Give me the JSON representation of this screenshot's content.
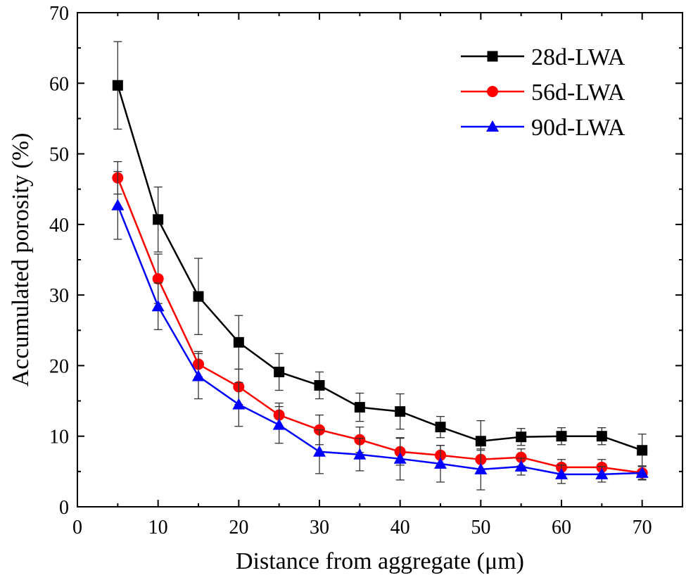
{
  "chart_data": {
    "type": "line",
    "title": "",
    "xlabel": "Distance from aggregate (μm)",
    "ylabel": "Accumulated porosity (%)",
    "xlim": [
      0,
      75
    ],
    "ylim": [
      0,
      70
    ],
    "xticks": [
      0,
      10,
      20,
      30,
      40,
      50,
      60,
      70
    ],
    "yticks": [
      0,
      10,
      20,
      30,
      40,
      50,
      60,
      70
    ],
    "x": [
      5,
      10,
      15,
      20,
      25,
      30,
      35,
      40,
      45,
      50,
      55,
      60,
      65,
      70
    ],
    "legend_position": "top-right",
    "series": [
      {
        "name": "28d-LWA",
        "color": "#000000",
        "marker": "square",
        "values": [
          59.7,
          40.7,
          29.8,
          23.3,
          19.1,
          17.2,
          14.1,
          13.5,
          11.3,
          9.3,
          9.9,
          10.0,
          10.0,
          8.0
        ],
        "errors": [
          6.2,
          4.6,
          5.4,
          3.8,
          2.6,
          1.9,
          2.0,
          2.5,
          1.5,
          2.9,
          1.2,
          1.2,
          1.2,
          2.3
        ]
      },
      {
        "name": "56d-LWA",
        "color": "#ff0000",
        "marker": "circle",
        "values": [
          46.6,
          32.3,
          20.2,
          17.0,
          13.0,
          10.9,
          9.5,
          7.8,
          7.3,
          6.7,
          7.0,
          5.6,
          5.6,
          4.8
        ],
        "errors": [
          2.3,
          3.5,
          1.8,
          2.5,
          1.7,
          2.1,
          1.8,
          1.9,
          1.4,
          1.3,
          1.2,
          1.1,
          1.1,
          0.9
        ]
      },
      {
        "name": "90d-LWA",
        "color": "#0000ff",
        "marker": "triangle",
        "values": [
          42.7,
          28.4,
          18.5,
          14.5,
          11.6,
          7.8,
          7.4,
          6.8,
          6.1,
          5.3,
          5.7,
          4.6,
          4.6,
          4.8
        ],
        "errors": [
          4.8,
          3.3,
          3.2,
          3.1,
          2.6,
          3.1,
          2.3,
          3.0,
          2.6,
          2.9,
          1.2,
          1.3,
          1.1,
          1.0
        ]
      }
    ]
  }
}
